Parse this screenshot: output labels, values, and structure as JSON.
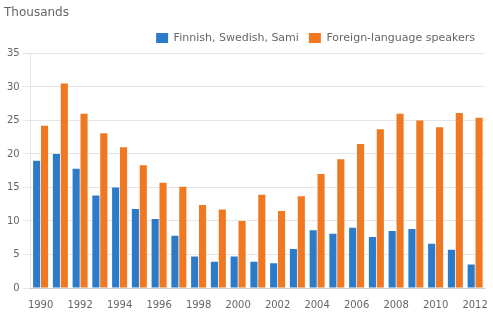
{
  "chart_data": {
    "type": "bar",
    "title": "Thousands",
    "categories": [
      "1990",
      null,
      "1992",
      null,
      "1994",
      null,
      "1996",
      null,
      "1998",
      null,
      "2000",
      null,
      "2002",
      null,
      "2004",
      null,
      "2006",
      null,
      "2008",
      null,
      "2010",
      null,
      "2012"
    ],
    "series": [
      {
        "name": "Finnish, Swedish, Sami",
        "color": "#2b7bca",
        "values": [
          19.0,
          20.0,
          17.8,
          13.8,
          15.0,
          11.8,
          10.3,
          7.8,
          4.7,
          3.9,
          4.7,
          3.9,
          3.7,
          5.8,
          8.6,
          8.1,
          9.0,
          7.6,
          8.5,
          8.8,
          6.6,
          5.7,
          3.5
        ]
      },
      {
        "name": "Foreign-language speakers",
        "color": "#f07820",
        "values": [
          24.2,
          30.5,
          26.0,
          23.1,
          21.0,
          18.3,
          15.7,
          15.1,
          12.4,
          11.7,
          10.0,
          13.9,
          11.5,
          13.7,
          17.0,
          19.2,
          21.5,
          23.7,
          26.0,
          25.0,
          24.0,
          26.1,
          25.4
        ]
      }
    ],
    "ylim": [
      0,
      35
    ],
    "yticks": [
      0,
      5,
      10,
      15,
      20,
      25,
      30,
      35
    ],
    "grid": true,
    "legend": "upper right"
  }
}
